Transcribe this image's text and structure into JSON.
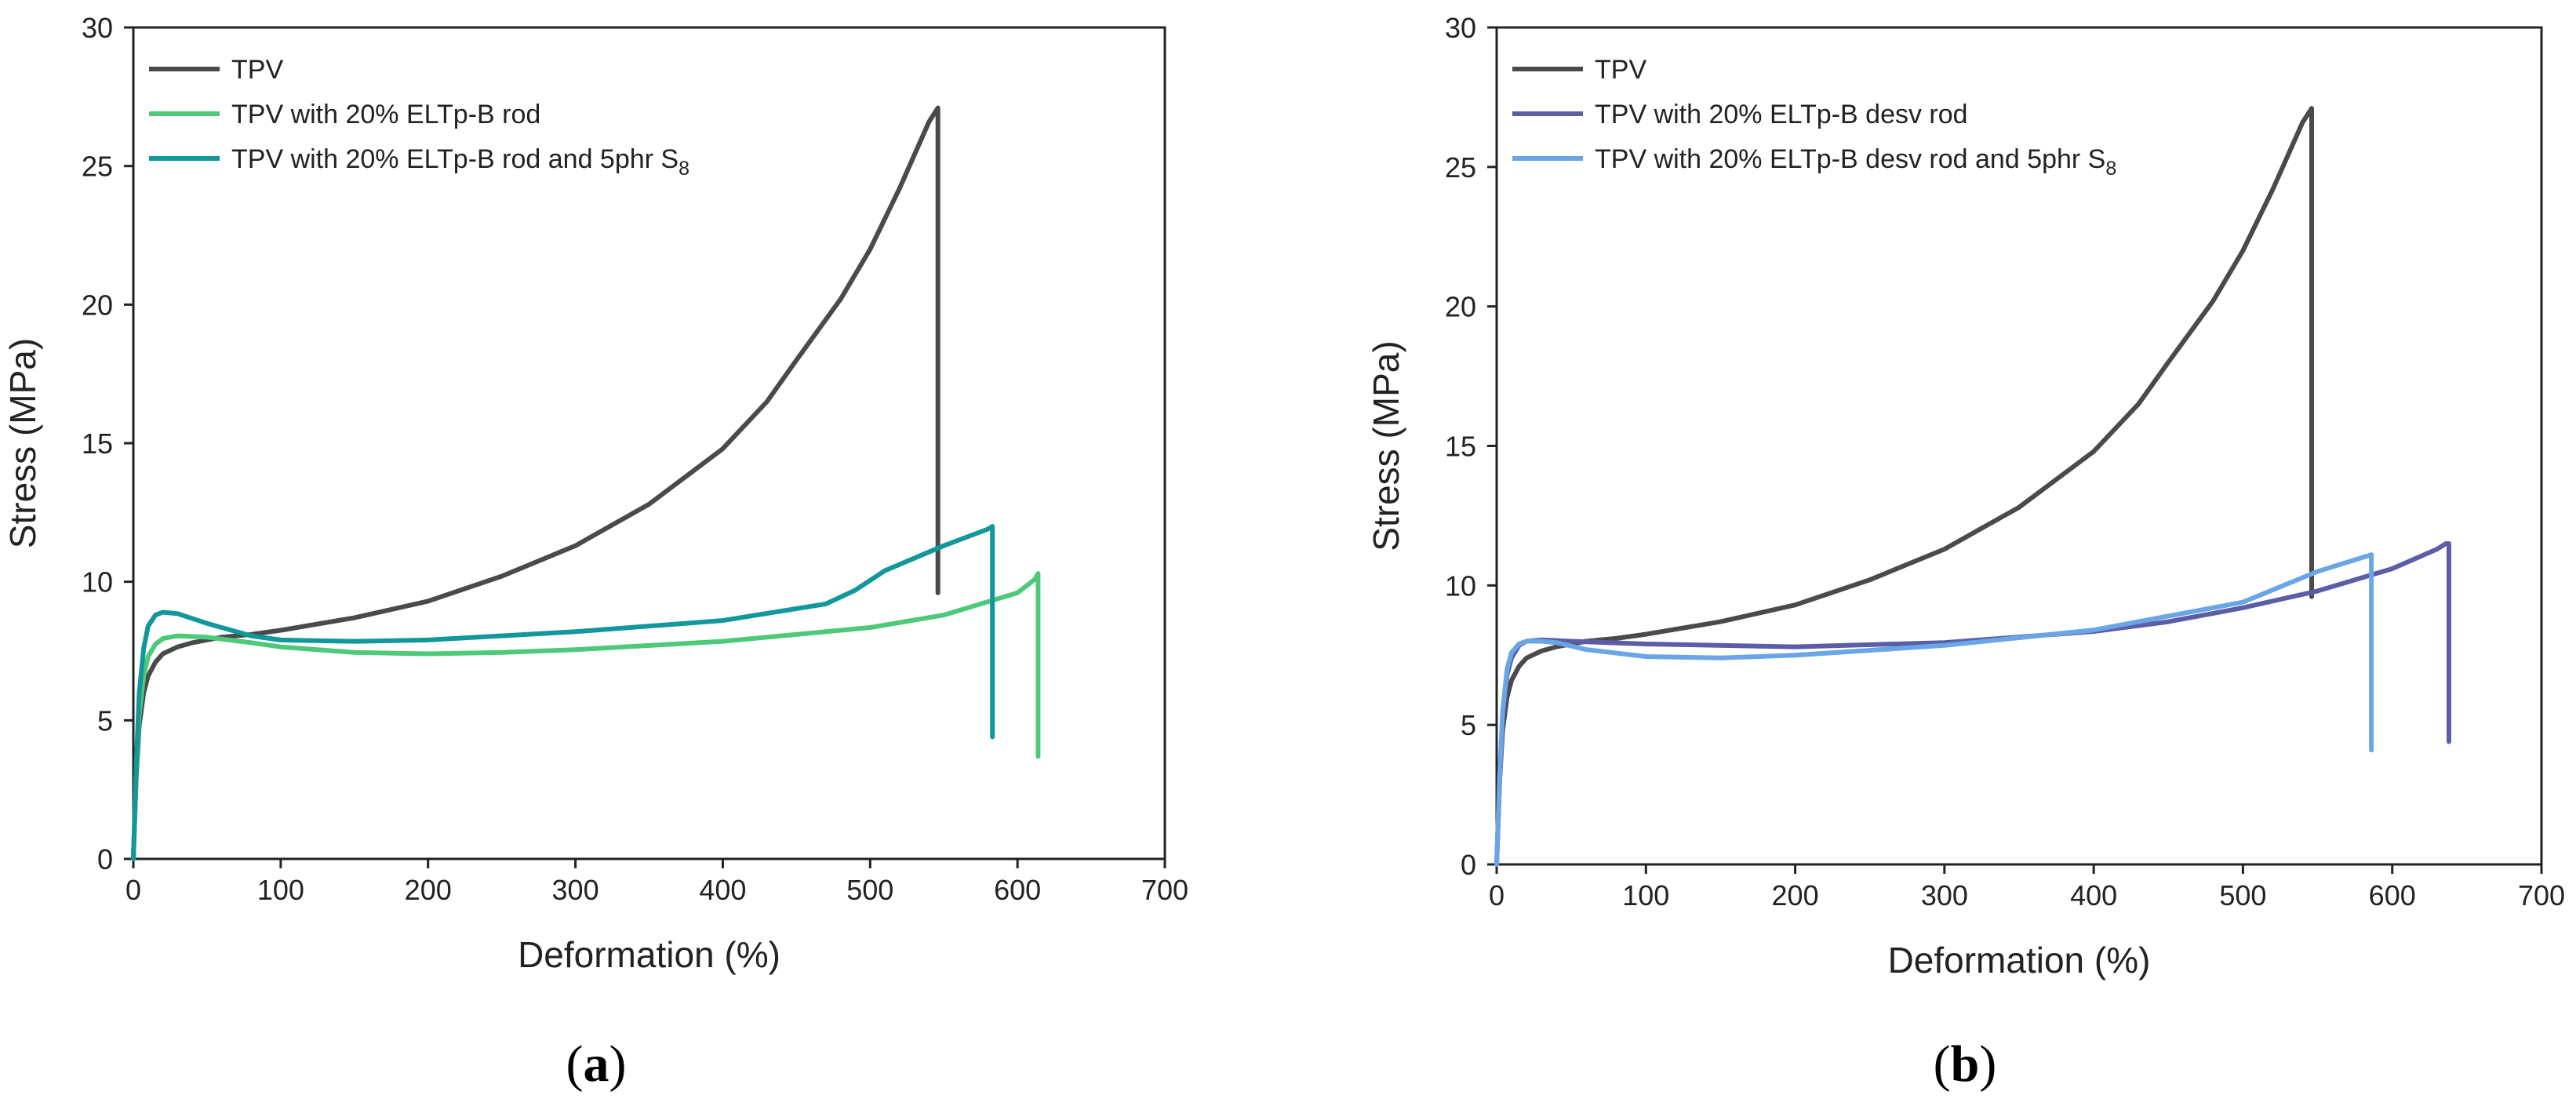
{
  "chart_data": [
    {
      "type": "line",
      "caption": "a",
      "xlabel": "Deformation (%)",
      "ylabel": "Stress (MPa)",
      "xlim": [
        0,
        700
      ],
      "ylim": [
        0,
        30
      ],
      "xticks": [
        0,
        100,
        200,
        300,
        400,
        500,
        600,
        700
      ],
      "yticks": [
        0,
        5,
        10,
        15,
        20,
        25,
        30
      ],
      "legend_position": "top-left",
      "series": [
        {
          "name": "TPV",
          "color": "#4a4a4a",
          "x": [
            0,
            2,
            4,
            7,
            10,
            15,
            20,
            30,
            40,
            60,
            80,
            100,
            150,
            200,
            250,
            300,
            350,
            400,
            430,
            450,
            480,
            500,
            520,
            540,
            546,
            546
          ],
          "y": [
            0,
            3.0,
            4.8,
            6.0,
            6.6,
            7.1,
            7.4,
            7.65,
            7.8,
            8.0,
            8.1,
            8.25,
            8.7,
            9.3,
            10.2,
            11.3,
            12.8,
            14.8,
            16.5,
            18.0,
            20.2,
            22.0,
            24.2,
            26.6,
            27.1,
            9.6
          ]
        },
        {
          "name": "TPV with 20% ELTp-B rod",
          "color": "#4ec97a",
          "x": [
            0,
            2,
            4,
            7,
            10,
            15,
            20,
            30,
            50,
            80,
            100,
            150,
            200,
            250,
            300,
            400,
            500,
            550,
            600,
            612,
            614,
            614
          ],
          "y": [
            0,
            3.2,
            5.2,
            6.6,
            7.3,
            7.75,
            7.95,
            8.05,
            8.0,
            7.8,
            7.65,
            7.45,
            7.4,
            7.45,
            7.55,
            7.85,
            8.35,
            8.8,
            9.6,
            10.1,
            10.3,
            3.7
          ]
        },
        {
          "name": "TPV with 20% ELTp-B rod and 5phr S",
          "name_sub": "8",
          "color": "#12979a",
          "x": [
            0,
            2,
            4,
            7,
            10,
            15,
            20,
            30,
            50,
            80,
            100,
            150,
            200,
            300,
            400,
            470,
            490,
            510,
            550,
            580,
            583,
            583
          ],
          "y": [
            0,
            3.5,
            6.0,
            7.6,
            8.4,
            8.8,
            8.9,
            8.85,
            8.5,
            8.05,
            7.9,
            7.85,
            7.9,
            8.2,
            8.6,
            9.2,
            9.7,
            10.4,
            11.3,
            11.9,
            12.0,
            4.4
          ]
        }
      ]
    },
    {
      "type": "line",
      "caption": "b",
      "xlabel": "Deformation (%)",
      "ylabel": "Stress (MPa)",
      "xlim": [
        0,
        700
      ],
      "ylim": [
        0,
        30
      ],
      "xticks": [
        0,
        100,
        200,
        300,
        400,
        500,
        600,
        700
      ],
      "yticks": [
        0,
        5,
        10,
        15,
        20,
        25,
        30
      ],
      "legend_position": "top-left",
      "series": [
        {
          "name": "TPV",
          "color": "#4a4a4a",
          "x": [
            0,
            2,
            4,
            7,
            10,
            15,
            20,
            30,
            40,
            60,
            80,
            100,
            150,
            200,
            250,
            300,
            350,
            400,
            430,
            450,
            480,
            500,
            520,
            540,
            546,
            546
          ],
          "y": [
            0,
            3.0,
            4.8,
            6.0,
            6.6,
            7.1,
            7.4,
            7.65,
            7.8,
            8.0,
            8.1,
            8.25,
            8.7,
            9.3,
            10.2,
            11.3,
            12.8,
            14.8,
            16.5,
            18.0,
            20.2,
            22.0,
            24.2,
            26.6,
            27.1,
            9.6
          ]
        },
        {
          "name": "TPV with 20% ELTp-B desv rod",
          "color": "#5b5ea6",
          "x": [
            0,
            2,
            4,
            7,
            10,
            15,
            20,
            30,
            50,
            100,
            200,
            300,
            400,
            450,
            500,
            550,
            600,
            630,
            636,
            638,
            638
          ],
          "y": [
            0,
            3.0,
            5.2,
            6.8,
            7.4,
            7.85,
            8.0,
            8.05,
            8.0,
            7.9,
            7.8,
            7.95,
            8.35,
            8.7,
            9.2,
            9.8,
            10.6,
            11.3,
            11.5,
            11.5,
            4.4
          ]
        },
        {
          "name": "TPV with 20% ELTp-B desv rod and 5phr S",
          "name_sub": "8",
          "color": "#6aa6e6",
          "x": [
            0,
            2,
            4,
            7,
            10,
            15,
            20,
            30,
            40,
            60,
            100,
            150,
            200,
            300,
            400,
            500,
            550,
            580,
            586,
            586
          ],
          "y": [
            0,
            3.2,
            5.5,
            7.0,
            7.6,
            7.9,
            8.0,
            8.0,
            7.95,
            7.7,
            7.45,
            7.4,
            7.5,
            7.85,
            8.4,
            9.4,
            10.5,
            11.0,
            11.1,
            4.1
          ]
        }
      ]
    }
  ]
}
